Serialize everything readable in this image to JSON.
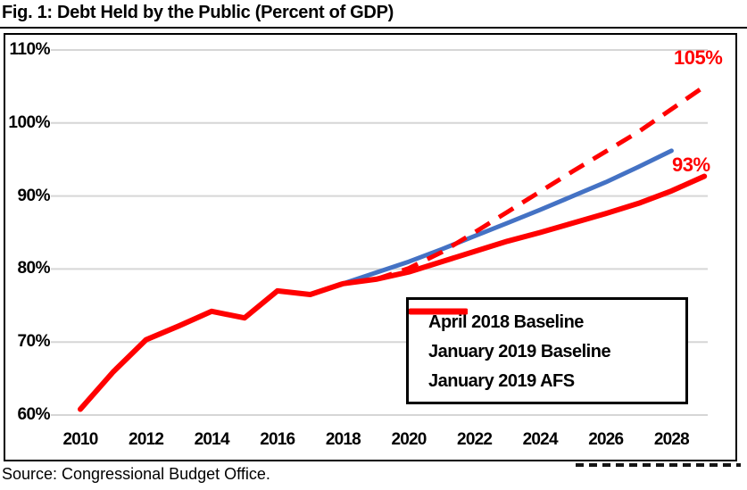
{
  "title": "Fig. 1: Debt Held by the Public (Percent of GDP)",
  "source": "Source: Congressional Budget Office.",
  "colors": {
    "baseline_2018": "#4472C4",
    "baseline_2019": "#FF0000",
    "afs_2019": "#FF0000",
    "gridline": "#D6D6D6",
    "annotation": "#FF0000",
    "text": "#000000"
  },
  "annotations": {
    "afs_end": {
      "text": "105%"
    },
    "baseline_end": {
      "text": "93%"
    }
  },
  "chart_data": {
    "type": "line",
    "title": "Fig. 1: Debt Held by the Public (Percent of GDP)",
    "xlabel": "",
    "ylabel": "Percent of GDP",
    "xlim": [
      2010,
      2029.4
    ],
    "ylim": [
      60,
      110
    ],
    "grid": "horizontal",
    "legend_position": "inside lower right",
    "yticks": [
      {
        "value": 110,
        "label": "110%"
      },
      {
        "value": 100,
        "label": "100%"
      },
      {
        "value": 90,
        "label": "90%"
      },
      {
        "value": 80,
        "label": "80%"
      },
      {
        "value": 70,
        "label": "70%"
      },
      {
        "value": 60,
        "label": "60%"
      }
    ],
    "xticks": [
      {
        "value": 2010,
        "label": "2010"
      },
      {
        "value": 2012,
        "label": "2012"
      },
      {
        "value": 2014,
        "label": "2014"
      },
      {
        "value": 2016,
        "label": "2016"
      },
      {
        "value": 2018,
        "label": "2018"
      },
      {
        "value": 2020,
        "label": "2020"
      },
      {
        "value": 2022,
        "label": "2022"
      },
      {
        "value": 2024,
        "label": "2024"
      },
      {
        "value": 2026,
        "label": "2026"
      },
      {
        "value": 2028,
        "label": "2028"
      }
    ],
    "series": [
      {
        "name": "April 2018 Baseline",
        "color": "#4472C4",
        "style": "solid",
        "width": 5,
        "x": [
          2017,
          2018,
          2019,
          2020,
          2021,
          2022,
          2023,
          2024,
          2025,
          2026,
          2027,
          2028
        ],
        "values": [
          76.5,
          78.0,
          79.5,
          81.0,
          82.7,
          84.5,
          86.3,
          88.1,
          90.0,
          91.9,
          94.0,
          96.2
        ]
      },
      {
        "name": "January 2019 Baseline",
        "color": "#FF0000",
        "style": "solid",
        "width": 6,
        "x": [
          2010,
          2011,
          2012,
          2013,
          2014,
          2015,
          2016,
          2017,
          2018,
          2019,
          2020,
          2021,
          2022,
          2023,
          2024,
          2025,
          2026,
          2027,
          2028,
          2029
        ],
        "values": [
          60.8,
          65.9,
          70.3,
          72.2,
          74.2,
          73.3,
          77.0,
          76.5,
          78.0,
          78.6,
          79.6,
          81.0,
          82.4,
          83.8,
          85.0,
          86.3,
          87.6,
          89.0,
          90.7,
          92.7
        ]
      },
      {
        "name": "January 2019 AFS",
        "color": "#FF0000",
        "style": "dashed",
        "width": 5,
        "x": [
          2019,
          2020,
          2021,
          2022,
          2023,
          2024,
          2025,
          2026,
          2027,
          2028,
          2029
        ],
        "values": [
          78.6,
          80.1,
          82.3,
          85.0,
          87.8,
          90.6,
          93.4,
          96.1,
          98.8,
          101.9,
          105.0
        ]
      }
    ]
  }
}
